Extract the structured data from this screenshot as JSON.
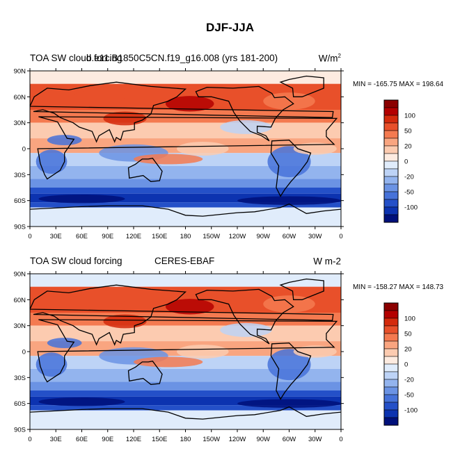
{
  "page_title": "DJF-JJA",
  "lat_labels": [
    "90N",
    "60N",
    "30N",
    "0",
    "30S",
    "60S",
    "90S"
  ],
  "lon_labels": [
    "0",
    "30E",
    "60E",
    "90E",
    "120E",
    "150E",
    "180",
    "150W",
    "120W",
    "90W",
    "60W",
    "30W",
    "0"
  ],
  "colorbar_labels": [
    "100",
    "50",
    "20",
    "0",
    "-20",
    "-50",
    "-100"
  ],
  "colors": [
    "#8b0000",
    "#b30000",
    "#d42a0c",
    "#e8502a",
    "#f47a50",
    "#f9a580",
    "#fccbb0",
    "#fdebe0",
    "#e0ecfb",
    "#bdd3f6",
    "#93b4ee",
    "#6b93e4",
    "#4672d9",
    "#2450c8",
    "#0c33b0",
    "#00107a"
  ],
  "panels": [
    {
      "left_title": "TOA SW cloud forcing",
      "center_title": "b.e11.B1850C5CN.f19_g16.008 (yrs 181-200)",
      "units": "W/m",
      "units_sup": "2",
      "minmax": "MIN = -165.75 MAX = 198.64"
    },
    {
      "left_title": "TOA SW cloud forcing",
      "center_title": "CERES-EBAF",
      "units": "W m-2",
      "units_sup": "",
      "minmax": "MIN = -158.27 MAX = 148.73"
    }
  ]
}
